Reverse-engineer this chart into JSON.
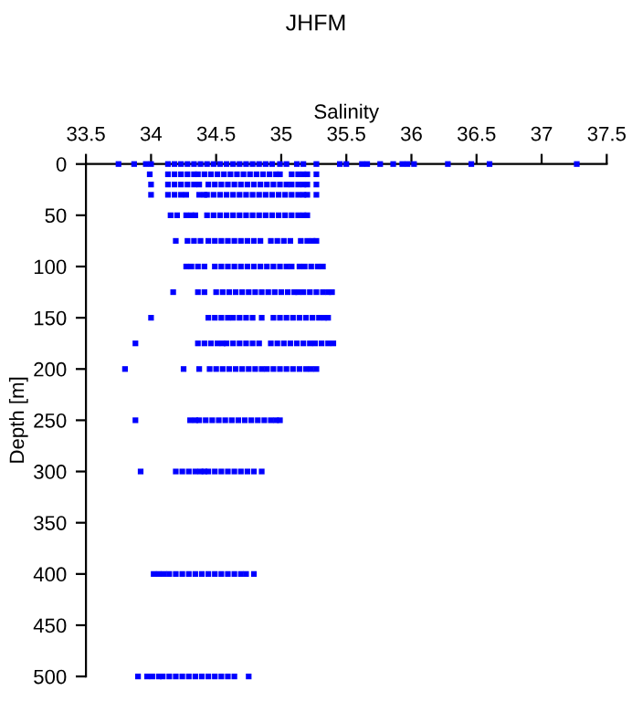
{
  "chart_data": {
    "type": "scatter",
    "title": "JHFM",
    "xlabel": "Salinity",
    "ylabel": "Depth [m]",
    "xlim": [
      33.5,
      37.5
    ],
    "xticks": [
      33.5,
      34,
      34.5,
      35,
      35.5,
      36,
      36.5,
      37,
      37.5
    ],
    "ylim": [
      500,
      0
    ],
    "yticks": [
      0,
      50,
      100,
      150,
      200,
      250,
      300,
      350,
      400,
      450,
      500
    ],
    "marker": "square",
    "grid": false,
    "series": [
      {
        "color": "#0000ff",
        "x": [
          33.75,
          33.87,
          33.96,
          34.0,
          34.13,
          34.18,
          34.23,
          34.28,
          34.33,
          34.38,
          34.43,
          34.48,
          34.53,
          34.58,
          34.63,
          34.68,
          34.73,
          34.78,
          34.83,
          34.88,
          34.93,
          34.99,
          35.04,
          35.12,
          35.17,
          35.27,
          35.45,
          35.5,
          35.62,
          35.66,
          35.76,
          35.86,
          35.93,
          35.97,
          36.02,
          36.28,
          36.46,
          36.6,
          37.27
        ],
        "values": [
          0,
          0,
          0,
          0,
          0,
          0,
          0,
          0,
          0,
          0,
          0,
          0,
          0,
          0,
          0,
          0,
          0,
          0,
          0,
          0,
          0,
          0,
          0,
          0,
          0,
          0,
          0,
          0,
          0,
          0,
          0,
          0,
          0,
          0,
          0,
          0,
          0,
          0,
          0
        ]
      },
      {
        "color": "#0000ff",
        "x": [
          33.99,
          34.13,
          34.18,
          34.23,
          34.28,
          34.33,
          34.36,
          34.41,
          34.46,
          34.51,
          34.56,
          34.61,
          34.66,
          34.71,
          34.76,
          34.81,
          34.86,
          34.91,
          34.96,
          34.99,
          35.08,
          35.13,
          35.17,
          35.2,
          35.27
        ],
        "values": [
          10,
          10,
          10,
          10,
          10,
          10,
          10,
          10,
          10,
          10,
          10,
          10,
          10,
          10,
          10,
          10,
          10,
          10,
          10,
          10,
          10,
          10,
          10,
          10,
          10
        ]
      },
      {
        "color": "#0000ff",
        "x": [
          34.0,
          34.13,
          34.18,
          34.23,
          34.28,
          34.33,
          34.37,
          34.44,
          34.49,
          34.54,
          34.59,
          34.64,
          34.69,
          34.74,
          34.79,
          34.84,
          34.89,
          34.94,
          34.99,
          35.04,
          35.08,
          35.13,
          35.17,
          35.2,
          35.27
        ],
        "values": [
          20,
          20,
          20,
          20,
          20,
          20,
          20,
          20,
          20,
          20,
          20,
          20,
          20,
          20,
          20,
          20,
          20,
          20,
          20,
          20,
          20,
          20,
          20,
          20,
          20
        ]
      },
      {
        "color": "#0000ff",
        "x": [
          34.0,
          34.13,
          34.18,
          34.23,
          34.27,
          34.37,
          34.41,
          34.43,
          34.48,
          34.53,
          34.58,
          34.63,
          34.68,
          34.73,
          34.78,
          34.83,
          34.88,
          34.93,
          34.98,
          35.03,
          35.08,
          35.13,
          35.17,
          35.2,
          35.27
        ],
        "values": [
          30,
          30,
          30,
          30,
          30,
          30,
          30,
          30,
          30,
          30,
          30,
          30,
          30,
          30,
          30,
          30,
          30,
          30,
          30,
          30,
          30,
          30,
          30,
          30,
          30
        ]
      },
      {
        "color": "#0000ff",
        "x": [
          34.15,
          34.2,
          34.27,
          34.31,
          34.34,
          34.43,
          34.48,
          34.53,
          34.58,
          34.63,
          34.68,
          34.73,
          34.78,
          34.83,
          34.88,
          34.93,
          34.98,
          35.03,
          35.08,
          35.13,
          35.17,
          35.2
        ],
        "values": [
          50,
          50,
          50,
          50,
          50,
          50,
          50,
          50,
          50,
          50,
          50,
          50,
          50,
          50,
          50,
          50,
          50,
          50,
          50,
          50,
          50,
          50
        ]
      },
      {
        "color": "#0000ff",
        "x": [
          34.19,
          34.28,
          34.33,
          34.38,
          34.44,
          34.49,
          34.54,
          34.59,
          34.64,
          34.69,
          34.74,
          34.79,
          34.84,
          34.92,
          34.97,
          35.02,
          35.07,
          35.15,
          35.2,
          35.24,
          35.27
        ],
        "values": [
          75,
          75,
          75,
          75,
          75,
          75,
          75,
          75,
          75,
          75,
          75,
          75,
          75,
          75,
          75,
          75,
          75,
          75,
          75,
          75,
          75
        ]
      },
      {
        "color": "#0000ff",
        "x": [
          34.27,
          34.31,
          34.36,
          34.41,
          34.49,
          34.54,
          34.59,
          34.64,
          34.69,
          34.74,
          34.79,
          34.84,
          34.89,
          34.94,
          34.99,
          35.04,
          35.08,
          35.14,
          35.18,
          35.23,
          35.28,
          35.32
        ],
        "values": [
          100,
          100,
          100,
          100,
          100,
          100,
          100,
          100,
          100,
          100,
          100,
          100,
          100,
          100,
          100,
          100,
          100,
          100,
          100,
          100,
          100,
          100
        ]
      },
      {
        "color": "#0000ff",
        "x": [
          34.17,
          34.36,
          34.41,
          34.5,
          34.55,
          34.6,
          34.65,
          34.7,
          34.75,
          34.8,
          34.85,
          34.9,
          34.95,
          35.0,
          35.05,
          35.1,
          35.13,
          35.17,
          35.22,
          35.27,
          35.32,
          35.36,
          35.39
        ],
        "values": [
          125,
          125,
          125,
          125,
          125,
          125,
          125,
          125,
          125,
          125,
          125,
          125,
          125,
          125,
          125,
          125,
          125,
          125,
          125,
          125,
          125,
          125,
          125
        ]
      },
      {
        "color": "#0000ff",
        "x": [
          34.0,
          34.44,
          34.49,
          34.54,
          34.59,
          34.63,
          34.68,
          34.73,
          34.78,
          34.85,
          34.94,
          34.99,
          35.04,
          35.09,
          35.14,
          35.19,
          35.24,
          35.29,
          35.33,
          35.36
        ],
        "values": [
          150,
          150,
          150,
          150,
          150,
          150,
          150,
          150,
          150,
          150,
          150,
          150,
          150,
          150,
          150,
          150,
          150,
          150,
          150,
          150
        ]
      },
      {
        "color": "#0000ff",
        "x": [
          33.88,
          34.36,
          34.41,
          34.46,
          34.51,
          34.55,
          34.58,
          34.63,
          34.68,
          34.73,
          34.78,
          34.83,
          34.92,
          34.97,
          35.02,
          35.07,
          35.12,
          35.17,
          35.22,
          35.26,
          35.31,
          35.36,
          35.4
        ],
        "values": [
          175,
          175,
          175,
          175,
          175,
          175,
          175,
          175,
          175,
          175,
          175,
          175,
          175,
          175,
          175,
          175,
          175,
          175,
          175,
          175,
          175,
          175,
          175
        ]
      },
      {
        "color": "#0000ff",
        "x": [
          33.8,
          34.25,
          34.37,
          34.45,
          34.5,
          34.55,
          34.6,
          34.65,
          34.7,
          34.75,
          34.8,
          34.85,
          34.89,
          34.94,
          34.99,
          35.04,
          35.09,
          35.14,
          35.19,
          35.23,
          35.27
        ],
        "values": [
          200,
          200,
          200,
          200,
          200,
          200,
          200,
          200,
          200,
          200,
          200,
          200,
          200,
          200,
          200,
          200,
          200,
          200,
          200,
          200,
          200
        ]
      },
      {
        "color": "#0000ff",
        "x": [
          33.88,
          34.3,
          34.34,
          34.37,
          34.42,
          34.47,
          34.52,
          34.57,
          34.62,
          34.67,
          34.72,
          34.77,
          34.82,
          34.87,
          34.92,
          34.96,
          34.99
        ],
        "values": [
          250,
          250,
          250,
          250,
          250,
          250,
          250,
          250,
          250,
          250,
          250,
          250,
          250,
          250,
          250,
          250,
          250
        ]
      },
      {
        "color": "#0000ff",
        "x": [
          33.92,
          34.19,
          34.24,
          34.29,
          34.34,
          34.38,
          34.41,
          34.44,
          34.49,
          34.54,
          34.59,
          34.64,
          34.69,
          34.74,
          34.79,
          34.85
        ],
        "values": [
          300,
          300,
          300,
          300,
          300,
          300,
          300,
          300,
          300,
          300,
          300,
          300,
          300,
          300,
          300,
          300
        ]
      },
      {
        "color": "#0000ff",
        "x": [
          34.02,
          34.06,
          34.1,
          34.14,
          34.19,
          34.24,
          34.29,
          34.34,
          34.39,
          34.44,
          34.49,
          34.54,
          34.59,
          34.64,
          34.69,
          34.73,
          34.79
        ],
        "values": [
          400,
          400,
          400,
          400,
          400,
          400,
          400,
          400,
          400,
          400,
          400,
          400,
          400,
          400,
          400,
          400,
          400
        ]
      },
      {
        "color": "#0000ff",
        "x": [
          33.9,
          33.97,
          34.01,
          34.06,
          34.09,
          34.14,
          34.19,
          34.24,
          34.29,
          34.34,
          34.39,
          34.44,
          34.49,
          34.54,
          34.59,
          34.64,
          34.75
        ],
        "values": [
          500,
          500,
          500,
          500,
          500,
          500,
          500,
          500,
          500,
          500,
          500,
          500,
          500,
          500,
          500,
          500,
          500
        ]
      }
    ]
  }
}
